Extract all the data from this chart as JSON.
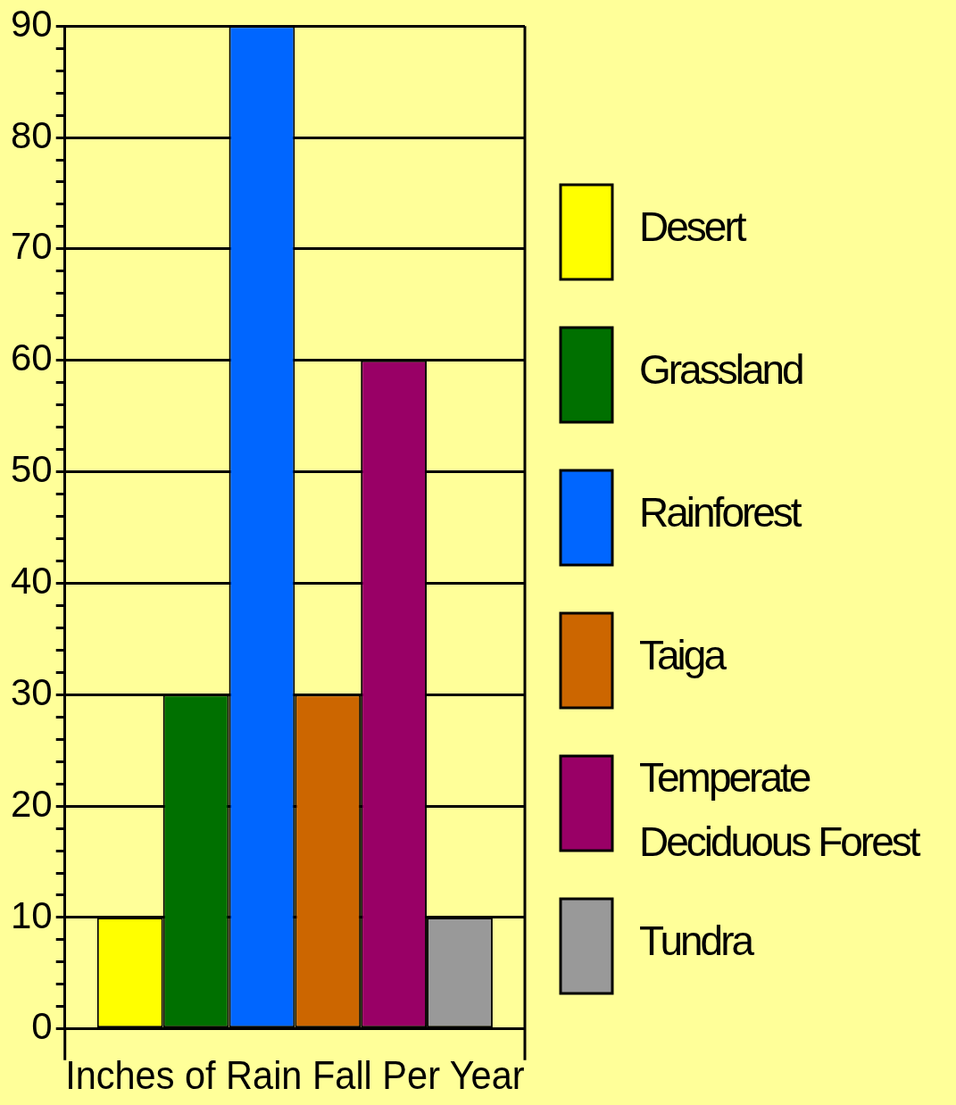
{
  "chart_data": {
    "type": "bar",
    "xlabel": "Inches of Rain Fall Per Year",
    "categories": [
      null
    ],
    "series": [
      {
        "name": "Desert",
        "color": "#ffff00",
        "values": [
          10
        ]
      },
      {
        "name": "Grassland",
        "color": "#007000",
        "values": [
          30
        ]
      },
      {
        "name": "Rainforest",
        "color": "#0066ff",
        "values": [
          90
        ]
      },
      {
        "name": "Taiga",
        "color": "#cc6600",
        "values": [
          30
        ]
      },
      {
        "name": "Temperate Deciduous Forest",
        "color": "#990066",
        "values": [
          60
        ]
      },
      {
        "name": "Tundra",
        "color": "#999999",
        "values": [
          10
        ]
      }
    ],
    "ylim": [
      0,
      90
    ],
    "yticks": [
      0,
      {
        "value": 2,
        "label": null
      },
      {
        "value": 4,
        "label": null
      },
      {
        "value": 6,
        "label": null
      },
      {
        "value": 8,
        "label": null
      },
      10,
      {
        "value": 12,
        "label": null
      },
      {
        "value": 14,
        "label": null
      },
      {
        "value": 16,
        "label": null
      },
      {
        "value": 18,
        "label": null
      },
      20,
      {
        "value": 22,
        "label": null
      },
      {
        "value": 24,
        "label": null
      },
      {
        "value": 26,
        "label": null
      },
      {
        "value": 28,
        "label": null
      },
      30,
      {
        "value": 32,
        "label": null
      },
      {
        "value": 34,
        "label": null
      },
      {
        "value": 36,
        "label": null
      },
      {
        "value": 38,
        "label": null
      },
      40,
      {
        "value": 42,
        "label": null
      },
      {
        "value": 44,
        "label": null
      },
      {
        "value": 46,
        "label": null
      },
      {
        "value": 48,
        "label": null
      },
      50,
      {
        "value": 52,
        "label": null
      },
      {
        "value": 54,
        "label": null
      },
      {
        "value": 56,
        "label": null
      },
      {
        "value": 58,
        "label": null
      },
      60,
      {
        "value": 62,
        "label": null
      },
      {
        "value": 64,
        "label": null
      },
      {
        "value": 66,
        "label": null
      },
      {
        "value": 68,
        "label": null
      },
      70,
      {
        "value": 72,
        "label": null
      },
      {
        "value": 74,
        "label": null
      },
      {
        "value": 76,
        "label": null
      },
      {
        "value": 78,
        "label": null
      },
      80,
      {
        "value": 82,
        "label": null
      },
      {
        "value": 84,
        "label": null
      },
      {
        "value": 86,
        "label": null
      },
      {
        "value": 88,
        "label": null
      },
      90
    ],
    "grid": "y",
    "legend": "right"
  }
}
